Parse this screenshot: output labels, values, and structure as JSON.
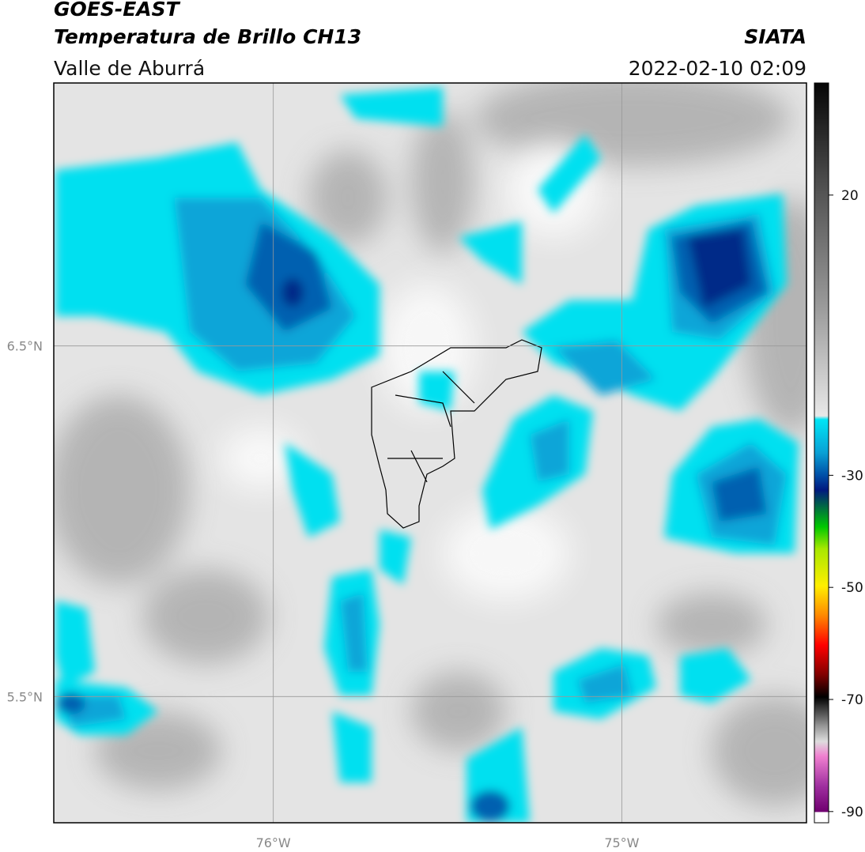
{
  "header": {
    "satellite": "GOES-EAST",
    "product": "Temperatura de Brillo CH13",
    "region": "Valle de Aburrá",
    "agency": "SIATA",
    "datetime": "2022-02-10 02:09"
  },
  "map": {
    "xlim": [
      -76.63,
      -74.47
    ],
    "ylim": [
      5.14,
      7.25
    ],
    "xticks": [
      {
        "value": -76,
        "label": "76°W"
      },
      {
        "value": -75,
        "label": "75°W"
      }
    ],
    "yticks": [
      {
        "value": 5.5,
        "label": "5.5°N"
      },
      {
        "value": 6.5,
        "label": "6.5°N"
      }
    ],
    "grid": true
  },
  "colorbar": {
    "lim": [
      -92,
      40
    ],
    "ticks": [
      20,
      -30,
      -50,
      -70,
      -90
    ]
  }
}
